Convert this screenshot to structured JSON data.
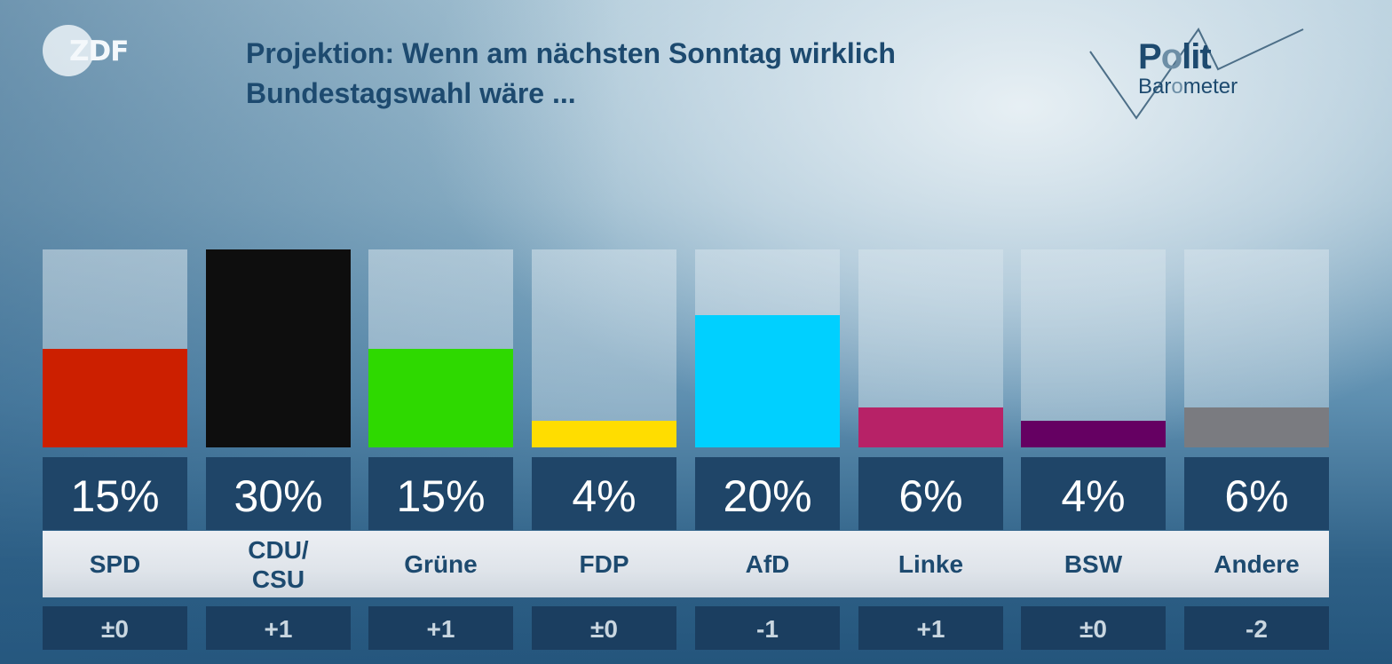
{
  "header": {
    "broadcaster_logo": "ZDF",
    "title_line1": "Projektion: Wenn am nächsten Sonntag wirklich",
    "title_line2": "Bundestagswahl wäre ...",
    "brand_logo_line1": "Polit",
    "brand_logo_line2": "Barometer"
  },
  "chart_data": {
    "type": "bar",
    "title": "Projektion: Wenn am nächsten Sonntag wirklich Bundestagswahl wäre ...",
    "xlabel": "",
    "ylabel": "",
    "ylim": [
      0,
      30
    ],
    "grid": false,
    "unit": "%",
    "categories": [
      "SPD",
      "CDU/CSU",
      "Grüne",
      "FDP",
      "AfD",
      "Linke",
      "BSW",
      "Andere"
    ],
    "values": [
      15,
      30,
      15,
      4,
      20,
      6,
      4,
      6
    ],
    "value_labels": [
      "15%",
      "30%",
      "15%",
      "4%",
      "20%",
      "6%",
      "4%",
      "6%"
    ],
    "change_labels": [
      "±0",
      "+1",
      "+1",
      "±0",
      "-1",
      "+1",
      "±0",
      "-2"
    ],
    "change_values": [
      0,
      1,
      1,
      0,
      -1,
      1,
      0,
      -2
    ],
    "party_labels": [
      [
        "SPD"
      ],
      [
        "CDU/",
        "CSU"
      ],
      [
        "Grüne"
      ],
      [
        "FDP"
      ],
      [
        "AfD"
      ],
      [
        "Linke"
      ],
      [
        "BSW"
      ],
      [
        "Andere"
      ]
    ],
    "colors": [
      "#cc1f00",
      "#0e0e0e",
      "#2ed900",
      "#ffdd00",
      "#00d0ff",
      "#b72267",
      "#650062",
      "#7a7b80"
    ]
  }
}
